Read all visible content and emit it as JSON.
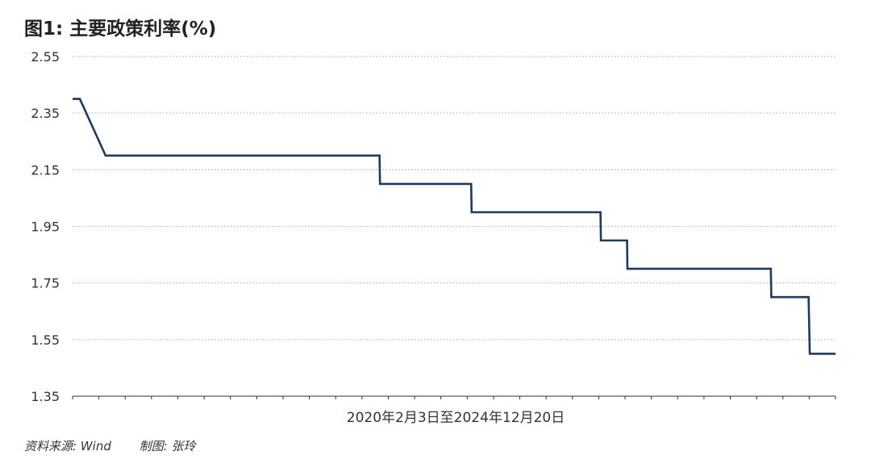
{
  "title": "图1: 主要政策利率(%)",
  "footer": {
    "source": "资料来源: Wind",
    "credit": "制图: 张玲"
  },
  "colors": {
    "line": "#1f3a5f",
    "grid": "#aaaaaa",
    "axis": "#333333"
  },
  "chart_data": {
    "type": "line",
    "title": "图1: 主要政策利率(%)",
    "xlabel": "2020年2月3日至2024年12月20日",
    "ylabel": "",
    "ylim": [
      1.35,
      2.55
    ],
    "yticks": [
      "2.55",
      "2.35",
      "2.15",
      "1.95",
      "1.75",
      "1.55",
      "1.35"
    ],
    "grid": true,
    "legend": "none",
    "x_range": [
      "2020-02-03",
      "2024-12-20"
    ],
    "series": [
      {
        "x": [
          "2020-02-03",
          "2020-02-20",
          "2020-04-20",
          "2022-01-20",
          "2022-01-21",
          "2022-08-22",
          "2022-08-23",
          "2023-06-20",
          "2023-06-21",
          "2023-08-21",
          "2023-08-22",
          "2024-07-22",
          "2024-07-23",
          "2024-10-18",
          "2024-10-21",
          "2024-12-20"
        ],
        "values": [
          2.4,
          2.4,
          2.2,
          2.2,
          2.1,
          2.1,
          2.0,
          2.0,
          1.9,
          1.9,
          1.8,
          1.8,
          1.7,
          1.7,
          1.5,
          1.5
        ]
      }
    ]
  }
}
